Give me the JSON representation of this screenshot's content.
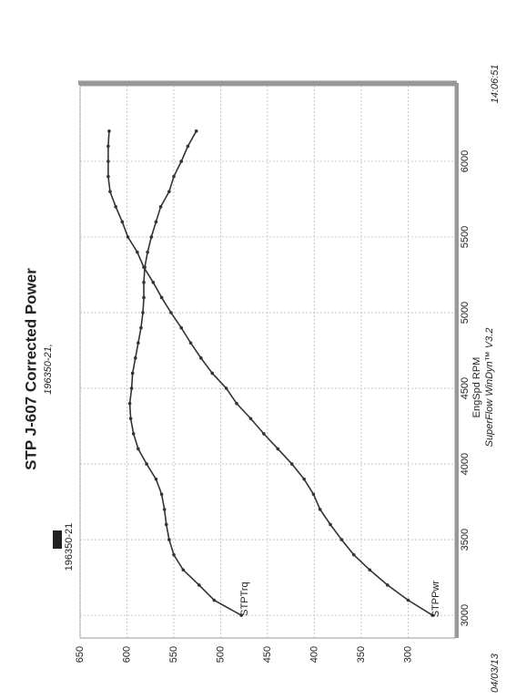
{
  "chart_data": {
    "type": "line",
    "title": "STP J-607 Corrected Power",
    "subtitle": "196350-21,",
    "legend_label": "196350-21",
    "x_label": "EngSpd RPM",
    "software": "SuperFlow WinDyn™ V3.2",
    "date": "04/03/13",
    "time": "14:06:51",
    "x": [
      3000,
      3100,
      3200,
      3300,
      3400,
      3500,
      3600,
      3700,
      3800,
      3900,
      4000,
      4100,
      4200,
      4300,
      4400,
      4500,
      4600,
      4700,
      4800,
      4900,
      5000,
      5100,
      5200,
      5300,
      5400,
      5500,
      5600,
      5700,
      5800,
      5900,
      6000,
      6100,
      6200
    ],
    "series": [
      {
        "name": "STPTrq",
        "color": "#333333",
        "values": [
          478,
          507,
          523,
          540,
          550,
          555,
          558,
          560,
          563,
          569,
          579,
          588,
          593,
          596,
          597,
          595,
          594,
          591,
          588,
          585,
          583,
          582,
          582,
          581,
          578,
          574,
          569,
          564,
          555,
          550,
          542,
          535,
          526
        ]
      },
      {
        "name": "STPPwr",
        "color": "#333333",
        "values": [
          274,
          300,
          322,
          341,
          358,
          371,
          383,
          394,
          401,
          411,
          424,
          439,
          454,
          468,
          483,
          494,
          509,
          521,
          532,
          542,
          553,
          563,
          572,
          582,
          589,
          599,
          605,
          612,
          618,
          620,
          620,
          620,
          619
        ]
      }
    ],
    "xlim": [
      2850,
      6500
    ],
    "xticks": [
      3000,
      3500,
      4000,
      4500,
      5000,
      5500,
      6000
    ],
    "ylim": [
      650,
      250
    ],
    "yticks": [
      650,
      600,
      550,
      500,
      450,
      400,
      350,
      300
    ],
    "grid": true
  }
}
